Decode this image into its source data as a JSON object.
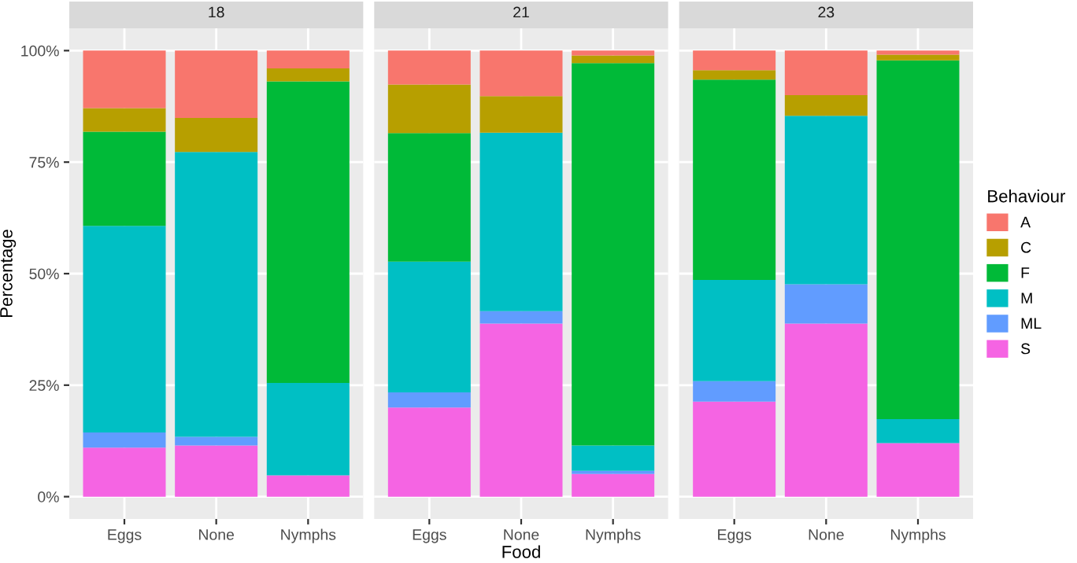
{
  "chart_data": [
    {
      "type": "bar",
      "stacked": true,
      "title": "18",
      "ylabel": "Percentage",
      "categories": [
        "Eggs",
        "None",
        "Nymphs"
      ],
      "ylim": [
        -5,
        105
      ],
      "yticks": [
        {
          "value": 0,
          "label": "0%"
        },
        {
          "value": 25,
          "label": "25%"
        },
        {
          "value": 50,
          "label": "50%"
        },
        {
          "value": 75,
          "label": "75%"
        },
        {
          "value": 100,
          "label": "100%"
        }
      ],
      "grid": true,
      "series": [
        {
          "color": "#f564e3",
          "values": [
            11,
            11.5,
            4.8
          ]
        },
        {
          "color": "#619cff",
          "values": [
            3.4,
            1.9,
            0
          ]
        },
        {
          "color": "#00bfc4",
          "values": [
            46.3,
            63.9,
            20.7
          ]
        },
        {
          "color": "#00ba38",
          "values": [
            21.1,
            0,
            67.6
          ]
        },
        {
          "color": "#b79f00",
          "values": [
            5.3,
            7.6,
            2.9
          ]
        },
        {
          "color": "#f8766d",
          "values": [
            12.9,
            15.1,
            4.0
          ]
        }
      ]
    },
    {
      "type": "bar",
      "stacked": true,
      "title": "21",
      "xlabel": "Food",
      "categories": [
        "Eggs",
        "None",
        "Nymphs"
      ],
      "ylim": [
        -5,
        105
      ],
      "yticks": [
        0,
        25,
        50,
        75,
        100
      ],
      "grid": true,
      "tick_labels": "x",
      "series": [
        {
          "color": "#f564e3",
          "values": [
            20,
            38.8,
            5.1
          ]
        },
        {
          "color": "#619cff",
          "values": [
            3.4,
            2.8,
            0.7
          ]
        },
        {
          "color": "#00bfc4",
          "values": [
            29.3,
            40,
            5.7
          ]
        },
        {
          "color": "#00ba38",
          "values": [
            28.8,
            0,
            85.7
          ]
        },
        {
          "color": "#b79f00",
          "values": [
            10.9,
            8.2,
            1.7
          ]
        },
        {
          "color": "#f8766d",
          "values": [
            7.6,
            10.2,
            1.1
          ]
        }
      ]
    },
    {
      "type": "bar",
      "stacked": true,
      "title": "23",
      "legend_title": "Behaviour",
      "legend": "right",
      "categories": [
        "Eggs",
        "None",
        "Nymphs"
      ],
      "ylim": [
        -5,
        105
      ],
      "yticks": [
        0,
        25,
        50,
        75,
        100
      ],
      "grid": true,
      "tick_labels": "x",
      "series": [
        {
          "name": "S",
          "color": "#f564e3",
          "values": [
            21.3,
            38.8,
            12.0
          ]
        },
        {
          "name": "ML",
          "color": "#619cff",
          "values": [
            4.6,
            8.8,
            0
          ]
        },
        {
          "name": "M",
          "color": "#00bfc4",
          "values": [
            22.7,
            37.8,
            5.4
          ]
        },
        {
          "name": "F",
          "color": "#00ba38",
          "values": [
            44.9,
            0,
            80.4
          ]
        },
        {
          "name": "C",
          "color": "#b79f00",
          "values": [
            2.1,
            4.6,
            1.3
          ]
        },
        {
          "name": "A",
          "color": "#f8766d",
          "values": [
            4.4,
            10.0,
            0.9
          ]
        }
      ]
    }
  ]
}
